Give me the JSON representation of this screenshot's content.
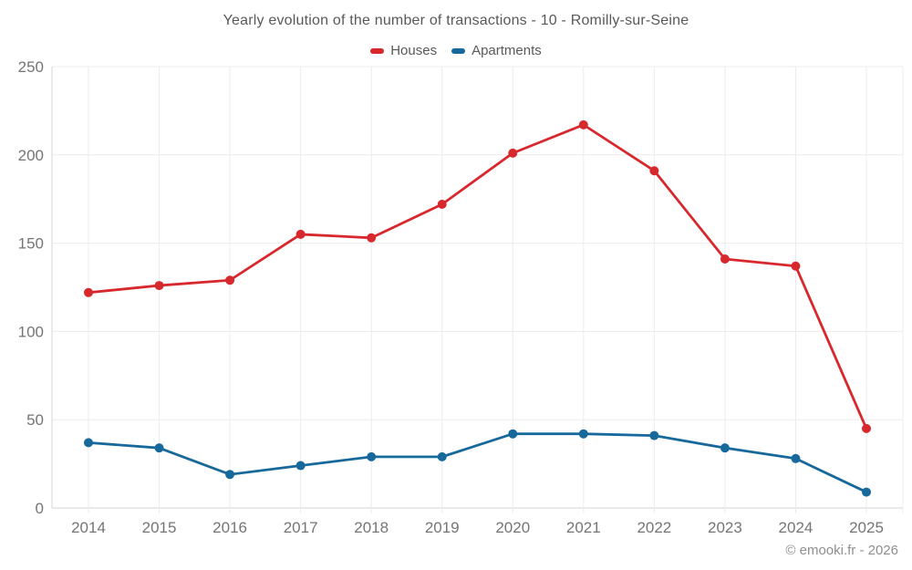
{
  "header": {
    "title": "Yearly evolution of the number of transactions - 10 - Romilly-sur-Seine"
  },
  "footer": {
    "credit": "© emooki.fr - 2026"
  },
  "colors": {
    "houses": "#d7282d",
    "apartments": "#17699b",
    "grid": "#ececec",
    "axis": "#d6d6d6",
    "tick_label": "#757575",
    "title_text": "#595959"
  },
  "chart_data": {
    "type": "line",
    "title": "Yearly evolution of the number of transactions - 10 - Romilly-sur-Seine",
    "xlabel": "",
    "ylabel": "",
    "x": [
      2014,
      2015,
      2016,
      2017,
      2018,
      2019,
      2020,
      2021,
      2022,
      2023,
      2024,
      2025
    ],
    "series": [
      {
        "name": "Houses",
        "color": "#d7282d",
        "values": [
          122,
          126,
          129,
          155,
          153,
          172,
          201,
          217,
          191,
          141,
          137,
          45
        ]
      },
      {
        "name": "Apartments",
        "color": "#17699b",
        "values": [
          37,
          34,
          19,
          24,
          29,
          29,
          42,
          42,
          41,
          34,
          28,
          9
        ]
      }
    ],
    "ylim": [
      0,
      250
    ],
    "ytick_step": 50,
    "yticks": [
      0,
      50,
      100,
      150,
      200,
      250
    ],
    "grid": true,
    "legend_position": "top-center",
    "marker": "circle"
  }
}
